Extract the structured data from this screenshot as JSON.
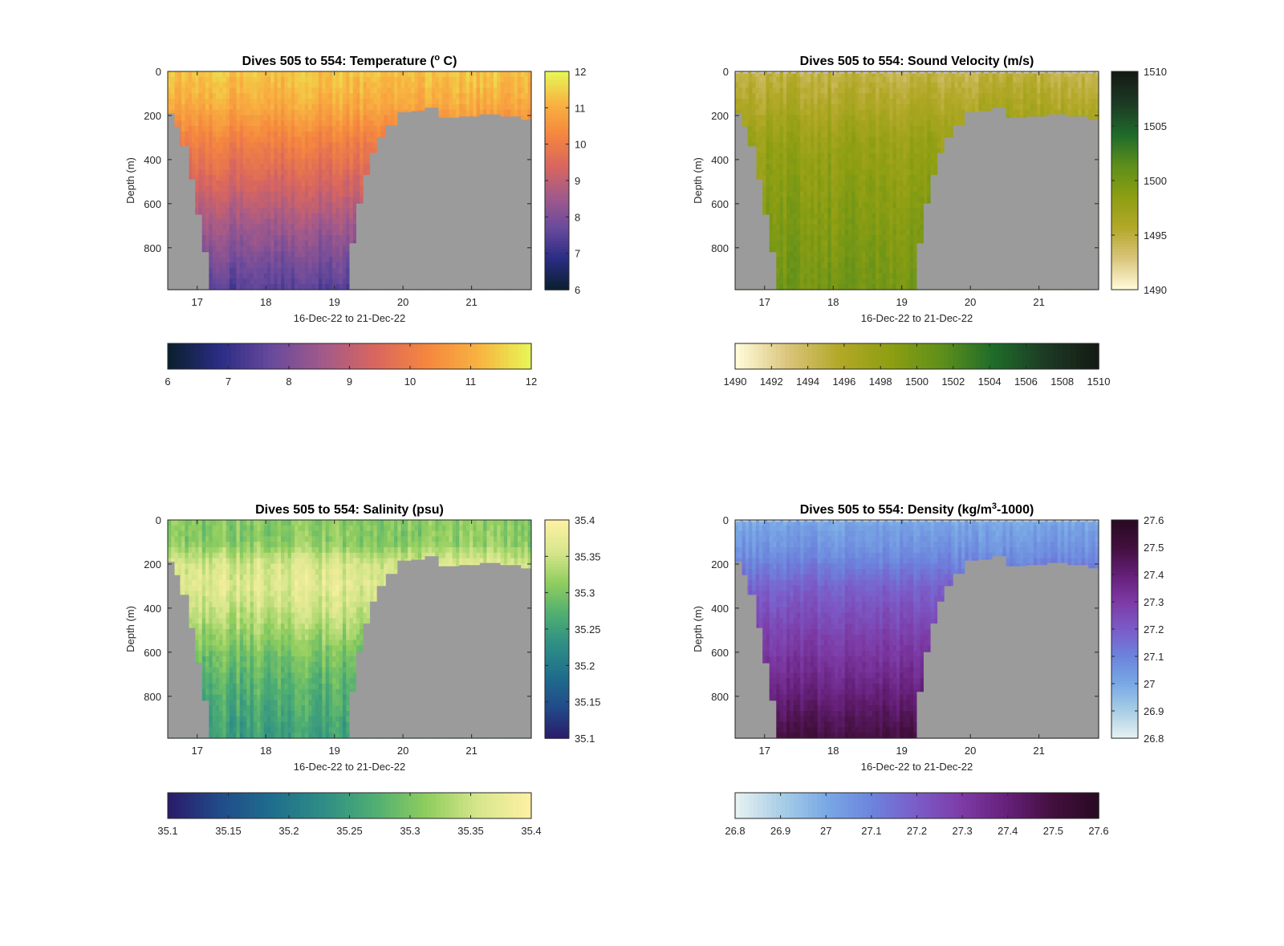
{
  "chart_data": [
    {
      "type": "heatmap",
      "title": "Dives 505 to 554: Temperature (° C)",
      "title_parts": [
        {
          "text": "Dives 505 to 554: Temperature ("
        },
        {
          "text": "o",
          "sup": true
        },
        {
          "text": " C)"
        }
      ],
      "xlabel": "16-Dec-22 to 21-Dec-22",
      "ylabel": "Depth (m)",
      "xlim": [
        16.57,
        21.87
      ],
      "ylim": [
        0,
        990
      ],
      "y_reversed": true,
      "xticks": [
        17,
        18,
        19,
        20,
        21
      ],
      "yticks": [
        0,
        200,
        400,
        600,
        800
      ],
      "clim": [
        6,
        12
      ],
      "colorbar_ticks_side": [
        6,
        7,
        8,
        9,
        10,
        11,
        12
      ],
      "colorbar_ticks_bottom": [
        6,
        7,
        8,
        9,
        10,
        11,
        12
      ],
      "colormap": [
        "#0a2030",
        "#2c2d86",
        "#6a4a9c",
        "#a35a8a",
        "#d9665e",
        "#f5863f",
        "#f8b240",
        "#e8f455"
      ],
      "profile": {
        "depths": [
          0,
          150,
          300,
          500,
          700,
          990
        ],
        "values": [
          11.4,
          11.0,
          10.2,
          9.4,
          8.5,
          7.4
        ]
      },
      "noise": 0.25,
      "surface_band": [],
      "bathymetry": {
        "x": [
          16.57,
          16.67,
          16.75,
          16.88,
          16.97,
          17.07,
          17.17,
          19.12,
          19.22,
          19.32,
          19.42,
          19.52,
          19.62,
          19.75,
          19.92,
          20.12,
          20.32,
          20.52,
          20.82,
          21.12,
          21.42,
          21.72,
          21.87
        ],
        "depth": [
          190,
          250,
          340,
          490,
          650,
          820,
          990,
          990,
          780,
          600,
          470,
          370,
          300,
          245,
          185,
          180,
          165,
          210,
          205,
          195,
          205,
          220,
          235
        ]
      },
      "bathymetry_color": "#9b9b9b"
    },
    {
      "type": "heatmap",
      "title": "Dives 505 to 554: Sound Velocity (m/s)",
      "title_parts": [
        {
          "text": "Dives 505 to 554: Sound Velocity (m/s)"
        }
      ],
      "xlabel": "16-Dec-22 to 21-Dec-22",
      "ylabel": "Depth (m)",
      "xlim": [
        16.57,
        21.87
      ],
      "ylim": [
        0,
        990
      ],
      "y_reversed": true,
      "xticks": [
        17,
        18,
        19,
        20,
        21
      ],
      "yticks": [
        0,
        200,
        400,
        600,
        800
      ],
      "clim": [
        1490,
        1510
      ],
      "colorbar_ticks_side": [
        1490,
        1495,
        1500,
        1505,
        1510
      ],
      "colorbar_ticks_bottom": [
        1490,
        1492,
        1494,
        1496,
        1498,
        1500,
        1502,
        1504,
        1506,
        1508,
        1510
      ],
      "colormap": [
        "#fffad8",
        "#d9c47a",
        "#b2a827",
        "#8d9e12",
        "#5d8f1b",
        "#1f6b2a",
        "#1d3b25",
        "#151a14"
      ],
      "profile": {
        "depths": [
          0,
          150,
          300,
          500,
          700,
          990
        ],
        "values": [
          1494.6,
          1496.0,
          1497.6,
          1498.6,
          1499.3,
          1500.2
        ]
      },
      "noise": 0.9,
      "surface_band": [
        0,
        10
      ],
      "bathymetry": {
        "x": [
          16.57,
          16.67,
          16.75,
          16.88,
          16.97,
          17.07,
          17.17,
          19.12,
          19.22,
          19.32,
          19.42,
          19.52,
          19.62,
          19.75,
          19.92,
          20.12,
          20.32,
          20.52,
          20.82,
          21.12,
          21.42,
          21.72,
          21.87
        ],
        "depth": [
          190,
          250,
          340,
          490,
          650,
          820,
          990,
          990,
          780,
          600,
          470,
          370,
          300,
          245,
          185,
          180,
          165,
          210,
          205,
          195,
          205,
          220,
          235
        ]
      },
      "bathymetry_color": "#9b9b9b"
    },
    {
      "type": "heatmap",
      "title": "Dives 505 to 554: Salinity (psu)",
      "title_parts": [
        {
          "text": "Dives 505 to 554: Salinity (psu)"
        }
      ],
      "xlabel": "16-Dec-22 to 21-Dec-22",
      "ylabel": "Depth (m)",
      "xlim": [
        16.57,
        21.87
      ],
      "ylim": [
        0,
        990
      ],
      "y_reversed": true,
      "xticks": [
        17,
        18,
        19,
        20,
        21
      ],
      "yticks": [
        0,
        200,
        400,
        600,
        800
      ],
      "clim": [
        35.1,
        35.4
      ],
      "colorbar_ticks_side": [
        35.1,
        35.15,
        35.2,
        35.25,
        35.3,
        35.35,
        35.4
      ],
      "colorbar_ticks_bottom": [
        35.1,
        35.15,
        35.2,
        35.25,
        35.3,
        35.35,
        35.4
      ],
      "colormap": [
        "#291d6b",
        "#214c8a",
        "#1f6e8c",
        "#2e8e85",
        "#4fae72",
        "#8fcd5e",
        "#d6e68b",
        "#fdf0a3"
      ],
      "profile": {
        "depths": [
          0,
          100,
          200,
          300,
          450,
          600,
          800,
          990
        ],
        "values": [
          35.31,
          35.31,
          35.36,
          35.37,
          35.34,
          35.3,
          35.27,
          35.25
        ]
      },
      "noise": 0.02,
      "surface_band": [],
      "bathymetry": {
        "x": [
          16.57,
          16.67,
          16.75,
          16.88,
          16.97,
          17.07,
          17.17,
          19.12,
          19.22,
          19.32,
          19.42,
          19.52,
          19.62,
          19.75,
          19.92,
          20.12,
          20.32,
          20.52,
          20.82,
          21.12,
          21.42,
          21.72,
          21.87
        ],
        "depth": [
          190,
          250,
          340,
          490,
          650,
          820,
          990,
          990,
          780,
          600,
          470,
          370,
          300,
          245,
          185,
          180,
          165,
          210,
          205,
          195,
          205,
          220,
          235
        ]
      },
      "bathymetry_color": "#9b9b9b"
    },
    {
      "type": "heatmap",
      "title": "Dives 505 to 554: Density (kg/m³-1000)",
      "title_parts": [
        {
          "text": "Dives 505 to 554: Density (kg/m"
        },
        {
          "text": "3",
          "sup": true
        },
        {
          "text": "-1000)"
        }
      ],
      "xlabel": "16-Dec-22 to 21-Dec-22",
      "ylabel": "Depth (m)",
      "xlim": [
        16.57,
        21.87
      ],
      "ylim": [
        0,
        990
      ],
      "y_reversed": true,
      "xticks": [
        17,
        18,
        19,
        20,
        21
      ],
      "yticks": [
        0,
        200,
        400,
        600,
        800
      ],
      "clim": [
        26.8,
        27.6
      ],
      "colorbar_ticks_side": [
        26.8,
        26.9,
        27,
        27.1,
        27.2,
        27.3,
        27.4,
        27.5,
        27.6
      ],
      "colorbar_ticks_bottom": [
        26.8,
        26.9,
        27,
        27.1,
        27.2,
        27.3,
        27.4,
        27.5,
        27.6
      ],
      "colormap": [
        "#e6f1f1",
        "#a7cde6",
        "#79a8e5",
        "#6c84dd",
        "#7b5cc8",
        "#7d3ba6",
        "#66207a",
        "#44103f",
        "#2a0a24"
      ],
      "profile": {
        "depths": [
          0,
          150,
          300,
          500,
          700,
          990
        ],
        "values": [
          27.0,
          27.07,
          27.18,
          27.27,
          27.35,
          27.5
        ]
      },
      "noise": 0.03,
      "surface_band": [
        0,
        10
      ],
      "bathymetry": {
        "x": [
          16.57,
          16.67,
          16.75,
          16.88,
          16.97,
          17.07,
          17.17,
          19.12,
          19.22,
          19.32,
          19.42,
          19.52,
          19.62,
          19.75,
          19.92,
          20.12,
          20.32,
          20.52,
          20.82,
          21.12,
          21.42,
          21.72,
          21.87
        ],
        "depth": [
          190,
          250,
          340,
          490,
          650,
          820,
          990,
          990,
          780,
          600,
          470,
          370,
          300,
          245,
          185,
          180,
          165,
          210,
          205,
          195,
          205,
          220,
          235
        ]
      },
      "bathymetry_color": "#9b9b9b"
    }
  ]
}
